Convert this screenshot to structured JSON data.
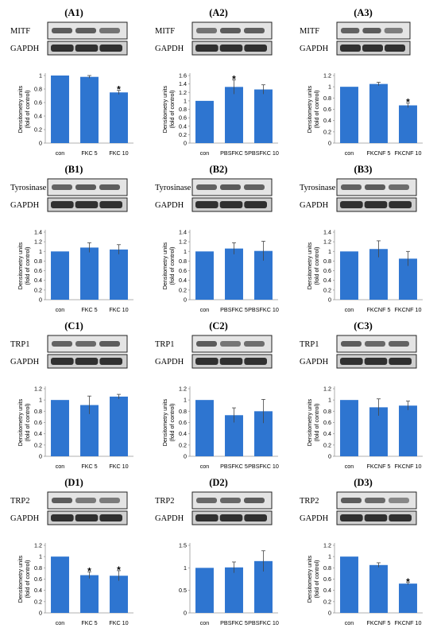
{
  "chart_data": [
    {
      "panel": "(A1)",
      "protein": "MITF",
      "loading": "GAPDH",
      "type": "bar",
      "ylabel": "Densitometry units (fold of control)",
      "categories": [
        "con",
        "FKC 5",
        "FKC 10"
      ],
      "values": [
        1.0,
        0.98,
        0.75
      ],
      "errors": [
        0.01,
        0.02,
        0.03
      ],
      "significant": [
        false,
        false,
        true
      ],
      "ylim": [
        0,
        1
      ],
      "yticks": [
        "0",
        "0.2",
        "0.4",
        "0.6",
        "0.8",
        "1"
      ]
    },
    {
      "panel": "(A2)",
      "protein": "MITF",
      "loading": "GAPDH",
      "type": "bar",
      "ylabel": "Densitometry units (fold of control)",
      "categories": [
        "con",
        "PBSFKC 5",
        "PBSFKC 10"
      ],
      "values": [
        1.0,
        1.33,
        1.27
      ],
      "errors": [
        0.01,
        0.17,
        0.11
      ],
      "significant": [
        false,
        true,
        false
      ],
      "ylim": [
        0,
        1.6
      ],
      "yticks": [
        "0",
        "0.2",
        "0.4",
        "0.6",
        "0.8",
        "1",
        "1.2",
        "1.4",
        "1.6"
      ]
    },
    {
      "panel": "(A3)",
      "protein": "MITF",
      "loading": "GAPDH",
      "type": "bar",
      "ylabel": "Densitometry units (fold of control)",
      "categories": [
        "con",
        "FKCNF 5",
        "FKCNF 10"
      ],
      "values": [
        1.0,
        1.05,
        0.67
      ],
      "errors": [
        0.01,
        0.03,
        0.04
      ],
      "significant": [
        false,
        false,
        true
      ],
      "ylim": [
        0,
        1.2
      ],
      "yticks": [
        "0",
        "0.2",
        "0.4",
        "0.6",
        "0.8",
        "1",
        "1.2"
      ]
    },
    {
      "panel": "(B1)",
      "protein": "Tyrosinase",
      "loading": "GAPDH",
      "type": "bar",
      "ylabel": "Densitometry units (fold of control)",
      "categories": [
        "con",
        "FKC 5",
        "FKC 10"
      ],
      "values": [
        1.0,
        1.08,
        1.04
      ],
      "errors": [
        0.01,
        0.1,
        0.1
      ],
      "significant": [
        false,
        false,
        false
      ],
      "ylim": [
        0,
        1.4
      ],
      "yticks": [
        "0",
        "0.2",
        "0.4",
        "0.6",
        "0.8",
        "1",
        "1.2",
        "1.4"
      ]
    },
    {
      "panel": "(B2)",
      "protein": "Tyrosinase",
      "loading": "GAPDH",
      "type": "bar",
      "ylabel": "Densitometry units (fold of control)",
      "categories": [
        "con",
        "PBSFKC 5",
        "PBSFKC 10"
      ],
      "values": [
        1.0,
        1.06,
        1.01
      ],
      "errors": [
        0.01,
        0.12,
        0.2
      ],
      "significant": [
        false,
        false,
        false
      ],
      "ylim": [
        0,
        1.4
      ],
      "yticks": [
        "0",
        "0.2",
        "0.4",
        "0.6",
        "0.8",
        "1",
        "1.2",
        "1.4"
      ]
    },
    {
      "panel": "(B3)",
      "protein": "Tyrosinase",
      "loading": "GAPDH",
      "type": "bar",
      "ylabel": "Densitometry units (fold of control)",
      "categories": [
        "con",
        "FKCNF 5",
        "FKCNF 10"
      ],
      "values": [
        1.0,
        1.05,
        0.85
      ],
      "errors": [
        0.01,
        0.17,
        0.15
      ],
      "significant": [
        false,
        false,
        false
      ],
      "ylim": [
        0,
        1.4
      ],
      "yticks": [
        "0",
        "0.2",
        "0.4",
        "0.6",
        "0.8",
        "1",
        "1.2",
        "1.4"
      ]
    },
    {
      "panel": "(C1)",
      "protein": "TRP1",
      "loading": "GAPDH",
      "type": "bar",
      "ylabel": "Densitometry units (fold of control)",
      "categories": [
        "con",
        "FKC 5",
        "FKC 10"
      ],
      "values": [
        1.0,
        0.91,
        1.06
      ],
      "errors": [
        0.01,
        0.16,
        0.04
      ],
      "significant": [
        false,
        false,
        false
      ],
      "ylim": [
        0,
        1.2
      ],
      "yticks": [
        "0",
        "0.2",
        "0.4",
        "0.6",
        "0.8",
        "1",
        "1.2"
      ]
    },
    {
      "panel": "(C2)",
      "protein": "TRP1",
      "loading": "GAPDH",
      "type": "bar",
      "ylabel": "Densitometry units (fold of control)",
      "categories": [
        "con",
        "PBSFKC 5",
        "PBSFKC 10"
      ],
      "values": [
        1.0,
        0.73,
        0.8
      ],
      "errors": [
        0.01,
        0.13,
        0.21
      ],
      "significant": [
        false,
        false,
        false
      ],
      "ylim": [
        0,
        1.2
      ],
      "yticks": [
        "0",
        "0.2",
        "0.4",
        "0.6",
        "0.8",
        "1",
        "1.2"
      ]
    },
    {
      "panel": "(C3)",
      "protein": "TRP1",
      "loading": "GAPDH",
      "type": "bar",
      "ylabel": "Densitometry units (fold of control)",
      "categories": [
        "con",
        "FKCNF 5",
        "FKCNF 10"
      ],
      "values": [
        1.0,
        0.87,
        0.9
      ],
      "errors": [
        0.01,
        0.15,
        0.08
      ],
      "significant": [
        false,
        false,
        false
      ],
      "ylim": [
        0,
        1.2
      ],
      "yticks": [
        "0",
        "0.2",
        "0.4",
        "0.6",
        "0.8",
        "1",
        "1.2"
      ]
    },
    {
      "panel": "(D1)",
      "protein": "TRP2",
      "loading": "GAPDH",
      "type": "bar",
      "ylabel": "Densitometry units (fold of control)",
      "categories": [
        "con",
        "FKC 5",
        "FKC 10"
      ],
      "values": [
        1.0,
        0.67,
        0.66
      ],
      "errors": [
        0.01,
        0.06,
        0.09
      ],
      "significant": [
        false,
        true,
        true
      ],
      "ylim": [
        0,
        1.2
      ],
      "yticks": [
        "0",
        "0.2",
        "0.4",
        "0.6",
        "0.8",
        "1",
        "1.2"
      ]
    },
    {
      "panel": "(D2)",
      "protein": "TRP2",
      "loading": "GAPDH",
      "type": "bar",
      "ylabel": "",
      "categories": [
        "con",
        "PBSFKC 5",
        "PBSFKC 10"
      ],
      "values": [
        1.0,
        1.01,
        1.15
      ],
      "errors": [
        0.01,
        0.12,
        0.23
      ],
      "significant": [
        false,
        false,
        false
      ],
      "ylim": [
        0,
        1.5
      ],
      "yticks": [
        "0",
        "0.5",
        "1",
        "1.5"
      ]
    },
    {
      "panel": "(D3)",
      "protein": "TRP2",
      "loading": "GAPDH",
      "type": "bar",
      "ylabel": "Densitometry units (fold of control)",
      "categories": [
        "con",
        "FKCNF 5",
        "FKCNF 10"
      ],
      "values": [
        1.0,
        0.85,
        0.52
      ],
      "errors": [
        0.01,
        0.04,
        0.02
      ],
      "significant": [
        false,
        false,
        true
      ],
      "ylim": [
        0,
        1.2
      ],
      "yticks": [
        "0",
        "0.2",
        "0.4",
        "0.6",
        "0.8",
        "1",
        "1.2"
      ]
    }
  ],
  "colors": {
    "bar": "#2e75d0",
    "axis": "#999999",
    "error": "#444444",
    "blot_bg": "#e4e4e4",
    "band": "#3a3a3a"
  },
  "significance_marker": "*"
}
